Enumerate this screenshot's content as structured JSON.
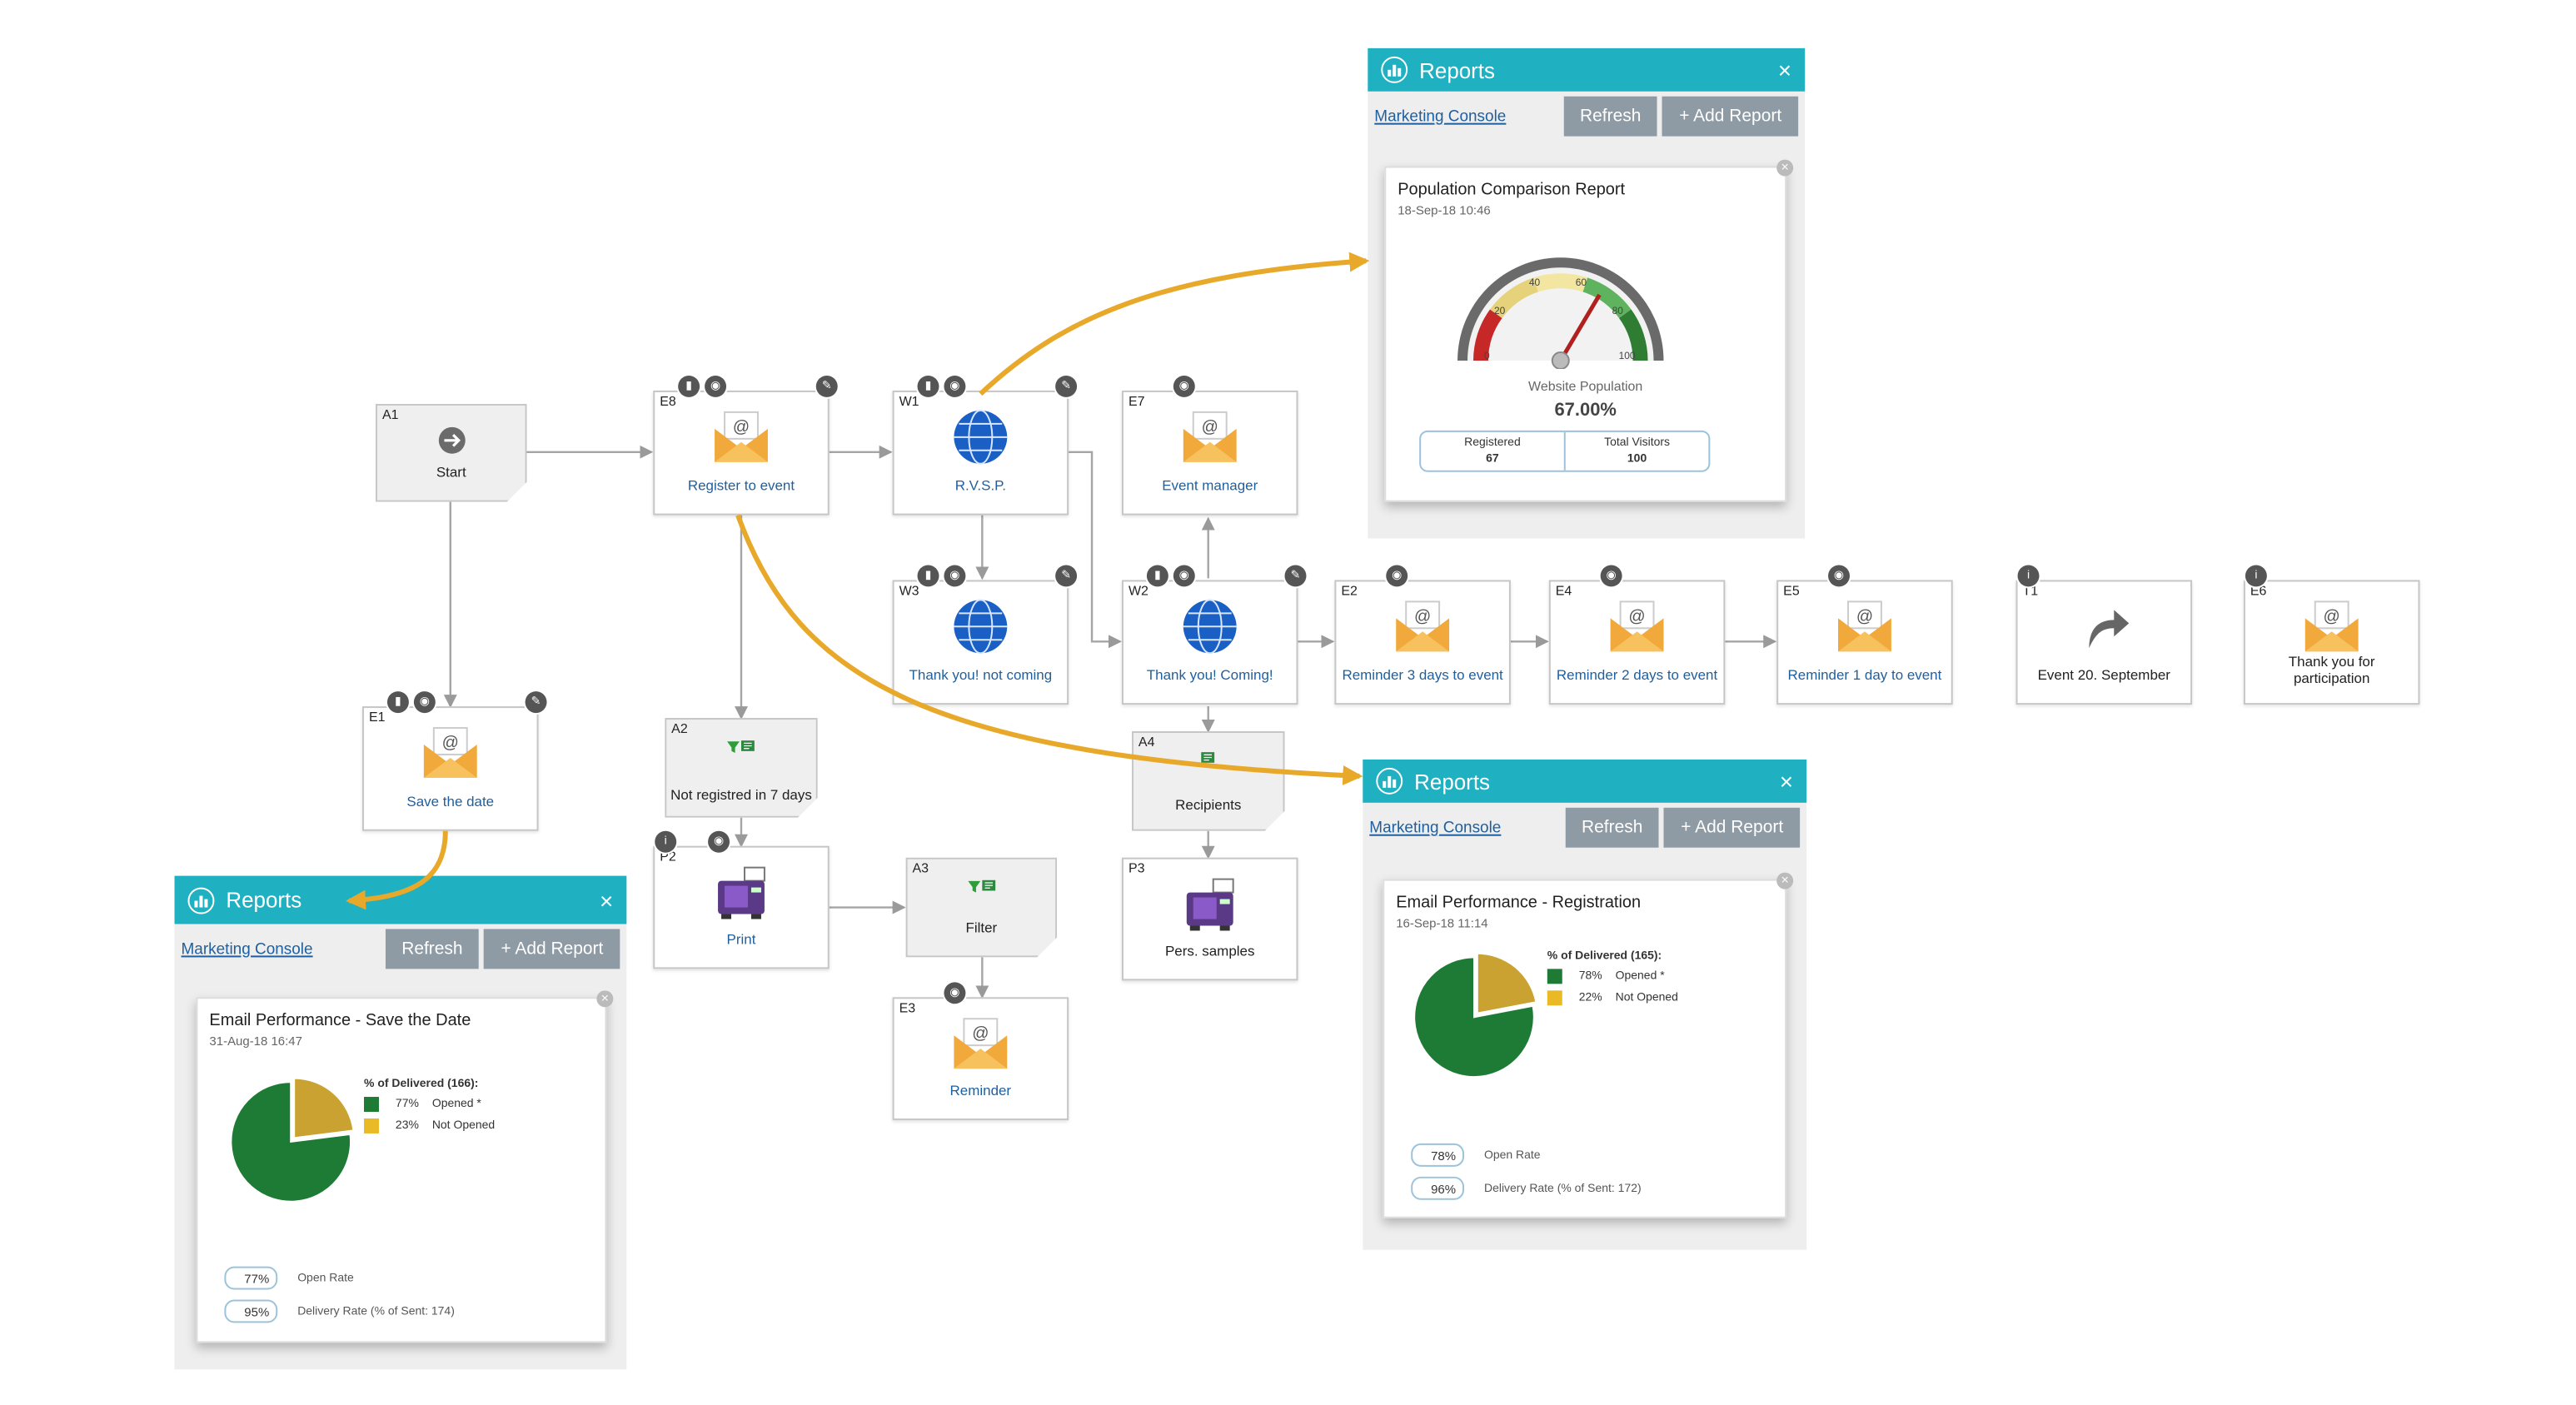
{
  "nodes": {
    "A1": {
      "id": "A1",
      "label": "Start"
    },
    "E8": {
      "id": "E8",
      "label": "Register to event"
    },
    "W1": {
      "id": "W1",
      "label": "R.V.S.P."
    },
    "E7": {
      "id": "E7",
      "label": "Event manager"
    },
    "W3": {
      "id": "W3",
      "label": "Thank you! not coming"
    },
    "W2": {
      "id": "W2",
      "label": "Thank you! Coming!"
    },
    "E2": {
      "id": "E2",
      "label": "Reminder 3 days to event"
    },
    "E4": {
      "id": "E4",
      "label": "Reminder 2 days to event"
    },
    "E5": {
      "id": "E5",
      "label": "Reminder 1 day to event"
    },
    "T1": {
      "id": "T1",
      "label": "Event 20. September"
    },
    "E6": {
      "id": "E6",
      "label": "Thank you for participation"
    },
    "E1": {
      "id": "E1",
      "label": "Save the date"
    },
    "A2": {
      "id": "A2",
      "label": "Not registred in 7 days"
    },
    "A4": {
      "id": "A4",
      "label": "Recipients"
    },
    "P2": {
      "id": "P2",
      "label": "Print"
    },
    "A3": {
      "id": "A3",
      "label": "Filter"
    },
    "P3": {
      "id": "P3",
      "label": "Pers. samples"
    },
    "E3": {
      "id": "E3",
      "label": "Reminder"
    }
  },
  "icons": {
    "badge_stats": "bar-chart-icon",
    "badge_eye": "eye-icon",
    "badge_info": "info-icon",
    "wrench": "wrench-icon",
    "email": "email-envelope-icon",
    "web": "globe-icon",
    "start": "arrow-right-icon",
    "print": "printer-icon",
    "filter": "filter-icon",
    "timer": "curved-arrow-icon"
  },
  "colors": {
    "panel_header": "#1fb0c2",
    "button": "#8e9aa4",
    "link": "#1f5f9e",
    "opened": "#1e7b35",
    "not_opened": "#e9b926",
    "arrow": "#e8a92a"
  },
  "panel_common": {
    "title": "Reports",
    "close": "×",
    "link": "Marketing Console",
    "refresh": "Refresh",
    "add": "+ Add Report"
  },
  "report_top": {
    "title": "Population Comparison Report",
    "date": "18-Sep-18 10:46",
    "gauge_label": "Website Population",
    "gauge_value": "67.00%",
    "ticks": [
      "0",
      "20",
      "40",
      "60",
      "80",
      "100"
    ],
    "table": [
      {
        "label": "Registered",
        "value": "67"
      },
      {
        "label": "Total Visitors",
        "value": "100"
      }
    ],
    "chart_data": {
      "type": "gauge",
      "value": 67,
      "range": [
        0,
        100
      ],
      "ticks": [
        0,
        20,
        40,
        60,
        80,
        100
      ],
      "label": "Website Population"
    }
  },
  "report_mid": {
    "title": "Email Performance - Registration",
    "date": "16-Sep-18 11:14",
    "legend_title": "% of Delivered (165):",
    "legend": [
      {
        "pct": "78%",
        "label": "Opened *"
      },
      {
        "pct": "22%",
        "label": "Not Opened"
      }
    ],
    "stats": [
      {
        "value": "78%",
        "label": "Open Rate"
      },
      {
        "value": "96%",
        "label": "Delivery Rate (% of Sent: 172)"
      }
    ],
    "chart_data": {
      "type": "pie",
      "categories": [
        "Opened *",
        "Not Opened"
      ],
      "values": [
        78,
        22
      ]
    }
  },
  "report_left": {
    "title": "Email Performance - Save the Date",
    "date": "31-Aug-18 16:47",
    "legend_title": "% of Delivered (166):",
    "legend": [
      {
        "pct": "77%",
        "label": "Opened *"
      },
      {
        "pct": "23%",
        "label": "Not Opened"
      }
    ],
    "stats": [
      {
        "value": "77%",
        "label": "Open Rate"
      },
      {
        "value": "95%",
        "label": "Delivery Rate (% of Sent: 174)"
      }
    ],
    "chart_data": {
      "type": "pie",
      "categories": [
        "Opened *",
        "Not Opened"
      ],
      "values": [
        77,
        23
      ]
    }
  }
}
